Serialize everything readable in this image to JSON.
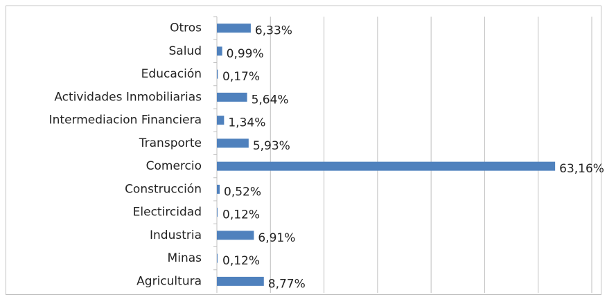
{
  "chart_data": {
    "type": "barh",
    "categories": [
      "Otros",
      "Salud",
      "Educación",
      "Actividades Inmobiliarias",
      "Intermediacion Financiera",
      "Transporte",
      "Comercio",
      "Construcción",
      "Electircidad",
      "Industria",
      "Minas",
      "Agricultura"
    ],
    "values": [
      6.33,
      0.99,
      0.17,
      5.64,
      1.34,
      5.93,
      63.16,
      0.52,
      0.12,
      6.91,
      0.12,
      8.77
    ],
    "value_labels": [
      "6,33%",
      "0,99%",
      "0,17%",
      "5,64%",
      "1,34%",
      "5,93%",
      "63,16%",
      "0,52%",
      "0,12%",
      "6,91%",
      "0,12%",
      "8,77%"
    ],
    "color": "#4f81bd",
    "xlim": [
      0,
      70
    ],
    "xticks": [
      0,
      10,
      20,
      30,
      40,
      50,
      60,
      70
    ],
    "grid": true
  }
}
